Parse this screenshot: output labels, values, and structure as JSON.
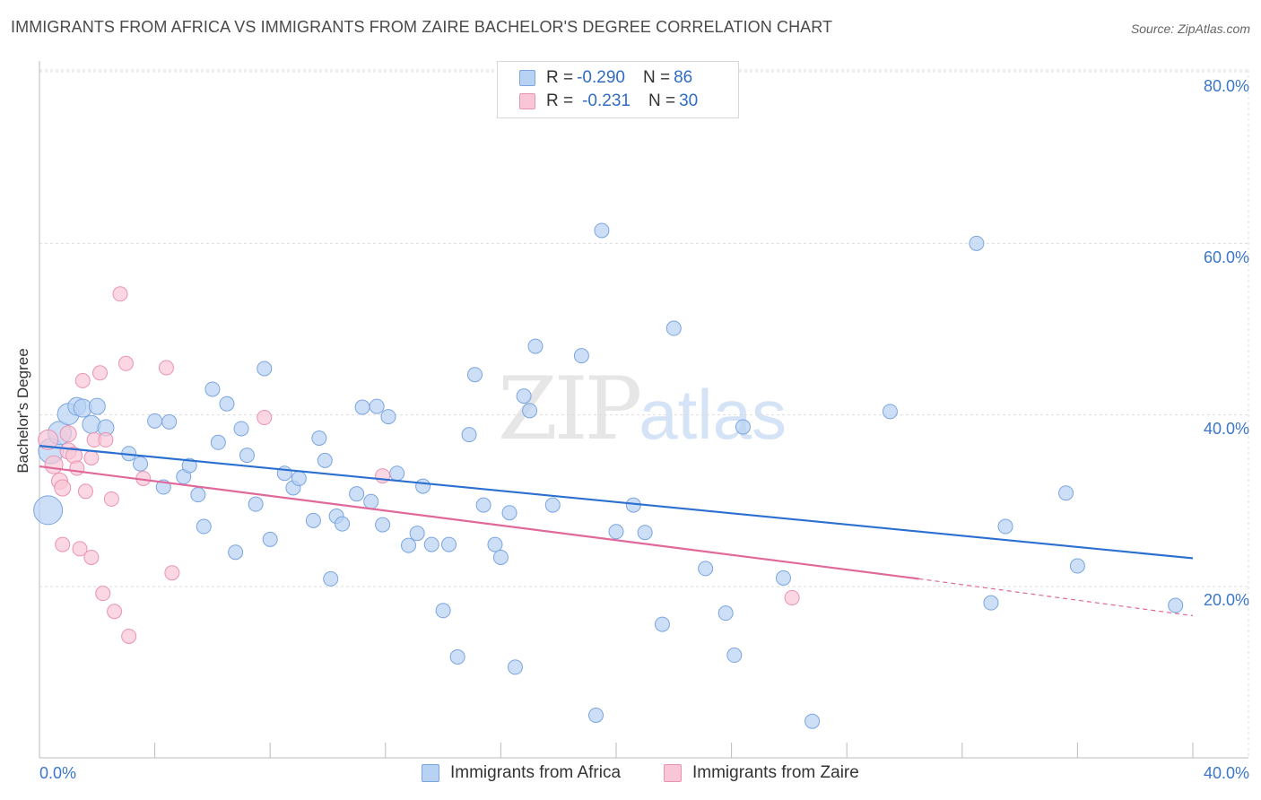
{
  "title": "IMMIGRANTS FROM AFRICA VS IMMIGRANTS FROM ZAIRE BACHELOR'S DEGREE CORRELATION CHART",
  "source": "Source: ZipAtlas.com",
  "watermark": {
    "zip": "ZIP",
    "atlas": "atlas"
  },
  "legend_top": {
    "series1": {
      "r_label": "R = ",
      "r_value": "-0.290",
      "n_label": "N = ",
      "n_value": "86"
    },
    "series2": {
      "r_label": "R = ",
      "r_value": "-0.231",
      "n_label": "N = ",
      "n_value": "30"
    }
  },
  "colors": {
    "africa_fill": "#b8d2f4",
    "africa_stroke": "#7aa5e0",
    "africa_line": "#2b6fd0",
    "zaire_fill": "#f8c6d6",
    "zaire_stroke": "#ea93b1",
    "zaire_line": "#e0689a",
    "grid": "#dddddd",
    "axis_text": "#3a76cc"
  },
  "chart_data": {
    "type": "scatter",
    "title": "IMMIGRANTS FROM AFRICA VS IMMIGRANTS FROM ZAIRE BACHELOR'S DEGREE CORRELATION CHART",
    "xlabel": "",
    "ylabel": "Bachelor's Degree",
    "xlim": [
      0,
      40
    ],
    "ylim": [
      0,
      82
    ],
    "x_tick_labels": [
      "0.0%",
      "40.0%"
    ],
    "y_ticks": [
      20,
      40,
      60,
      80
    ],
    "y_tick_labels": [
      "20.0%",
      "40.0%",
      "60.0%",
      "80.0%"
    ],
    "grid": true,
    "legend_position": "bottom",
    "series": [
      {
        "name": "Immigrants from Africa",
        "r": -0.29,
        "n": 86,
        "trend": {
          "x0": 0,
          "y0": 36.4,
          "x1": 40,
          "y1": 23.3
        },
        "points": [
          [
            0.3,
            28.9,
            16
          ],
          [
            0.4,
            35.8,
            14
          ],
          [
            0.7,
            37.9,
            13
          ],
          [
            1.0,
            40.1,
            12
          ],
          [
            1.3,
            41.0,
            10
          ],
          [
            1.5,
            40.8,
            10
          ],
          [
            1.8,
            38.9,
            10
          ],
          [
            2.0,
            41.0,
            9
          ],
          [
            2.3,
            38.5,
            9
          ],
          [
            3.1,
            35.5,
            8
          ],
          [
            3.5,
            34.3,
            8
          ],
          [
            4.0,
            39.3,
            8
          ],
          [
            4.3,
            31.6,
            8
          ],
          [
            4.5,
            39.2,
            8
          ],
          [
            5.0,
            32.8,
            8
          ],
          [
            5.2,
            34.1,
            8
          ],
          [
            5.5,
            30.7,
            8
          ],
          [
            5.7,
            27.0,
            8
          ],
          [
            6.0,
            43.0,
            8
          ],
          [
            6.2,
            36.8,
            8
          ],
          [
            6.5,
            41.3,
            8
          ],
          [
            6.8,
            24.0,
            8
          ],
          [
            7.0,
            38.4,
            8
          ],
          [
            7.2,
            35.3,
            8
          ],
          [
            7.5,
            29.6,
            8
          ],
          [
            7.8,
            45.4,
            8
          ],
          [
            8.0,
            25.5,
            8
          ],
          [
            8.5,
            33.2,
            8
          ],
          [
            8.8,
            31.5,
            8
          ],
          [
            9.0,
            32.6,
            8
          ],
          [
            9.5,
            27.7,
            8
          ],
          [
            9.7,
            37.3,
            8
          ],
          [
            9.9,
            34.7,
            8
          ],
          [
            10.1,
            20.9,
            8
          ],
          [
            10.3,
            28.2,
            8
          ],
          [
            10.5,
            27.3,
            8
          ],
          [
            11.0,
            30.8,
            8
          ],
          [
            11.2,
            40.9,
            8
          ],
          [
            11.5,
            29.9,
            8
          ],
          [
            11.7,
            41.0,
            8
          ],
          [
            11.9,
            27.2,
            8
          ],
          [
            12.1,
            39.8,
            8
          ],
          [
            12.4,
            33.2,
            8
          ],
          [
            12.8,
            24.8,
            8
          ],
          [
            13.1,
            26.2,
            8
          ],
          [
            13.3,
            31.7,
            8
          ],
          [
            13.6,
            24.9,
            8
          ],
          [
            14.0,
            17.2,
            8
          ],
          [
            14.2,
            24.9,
            8
          ],
          [
            14.5,
            11.8,
            8
          ],
          [
            14.9,
            37.7,
            8
          ],
          [
            15.1,
            44.7,
            8
          ],
          [
            15.4,
            29.5,
            8
          ],
          [
            15.8,
            24.9,
            8
          ],
          [
            16.0,
            23.4,
            8
          ],
          [
            16.3,
            28.6,
            8
          ],
          [
            16.5,
            10.6,
            8
          ],
          [
            16.8,
            42.2,
            8
          ],
          [
            17.0,
            40.5,
            8
          ],
          [
            17.2,
            48.0,
            8
          ],
          [
            17.8,
            29.5,
            8
          ],
          [
            18.8,
            46.9,
            8
          ],
          [
            19.3,
            5.0,
            8
          ],
          [
            19.5,
            61.5,
            8
          ],
          [
            20.0,
            26.4,
            8
          ],
          [
            20.6,
            29.5,
            8
          ],
          [
            21.0,
            26.3,
            8
          ],
          [
            21.6,
            15.6,
            8
          ],
          [
            22.0,
            50.1,
            8
          ],
          [
            23.1,
            22.1,
            8
          ],
          [
            23.8,
            16.9,
            8
          ],
          [
            24.1,
            12.0,
            8
          ],
          [
            24.4,
            38.6,
            8
          ],
          [
            25.8,
            21.0,
            8
          ],
          [
            26.8,
            4.3,
            8
          ],
          [
            29.5,
            40.4,
            8
          ],
          [
            32.5,
            60.0,
            8
          ],
          [
            33.0,
            18.1,
            8
          ],
          [
            33.5,
            27.0,
            8
          ],
          [
            35.6,
            30.9,
            8
          ],
          [
            36.0,
            22.4,
            8
          ],
          [
            39.4,
            17.8,
            8
          ]
        ]
      },
      {
        "name": "Immigrants from Zaire",
        "r": -0.231,
        "n": 30,
        "trend": {
          "x0": 0,
          "y0": 34.0,
          "x1": 30.5,
          "y1": 20.9,
          "dashed_to_x": 40,
          "dashed_to_y": 16.6
        },
        "points": [
          [
            0.3,
            37.1,
            11
          ],
          [
            0.5,
            34.2,
            10
          ],
          [
            0.7,
            32.3,
            9
          ],
          [
            0.8,
            31.5,
            9
          ],
          [
            0.8,
            24.9,
            8
          ],
          [
            1.0,
            37.8,
            9
          ],
          [
            1.0,
            35.8,
            9
          ],
          [
            1.2,
            35.3,
            9
          ],
          [
            1.3,
            33.8,
            8
          ],
          [
            1.4,
            24.4,
            8
          ],
          [
            1.5,
            44.0,
            8
          ],
          [
            1.6,
            31.1,
            8
          ],
          [
            1.8,
            35.0,
            8
          ],
          [
            1.8,
            23.4,
            8
          ],
          [
            1.9,
            37.1,
            8
          ],
          [
            2.1,
            44.9,
            8
          ],
          [
            2.2,
            19.2,
            8
          ],
          [
            2.3,
            37.1,
            8
          ],
          [
            2.5,
            30.2,
            8
          ],
          [
            2.6,
            17.1,
            8
          ],
          [
            2.8,
            54.1,
            8
          ],
          [
            3.0,
            46.0,
            8
          ],
          [
            3.1,
            14.2,
            8
          ],
          [
            3.6,
            32.6,
            8
          ],
          [
            4.4,
            45.5,
            8
          ],
          [
            4.6,
            21.6,
            8
          ],
          [
            7.8,
            39.7,
            8
          ],
          [
            11.9,
            32.9,
            8
          ],
          [
            26.1,
            18.7,
            8
          ]
        ]
      }
    ]
  },
  "bottom_legend": {
    "africa": "Immigrants from Africa",
    "zaire": "Immigrants from Zaire"
  }
}
